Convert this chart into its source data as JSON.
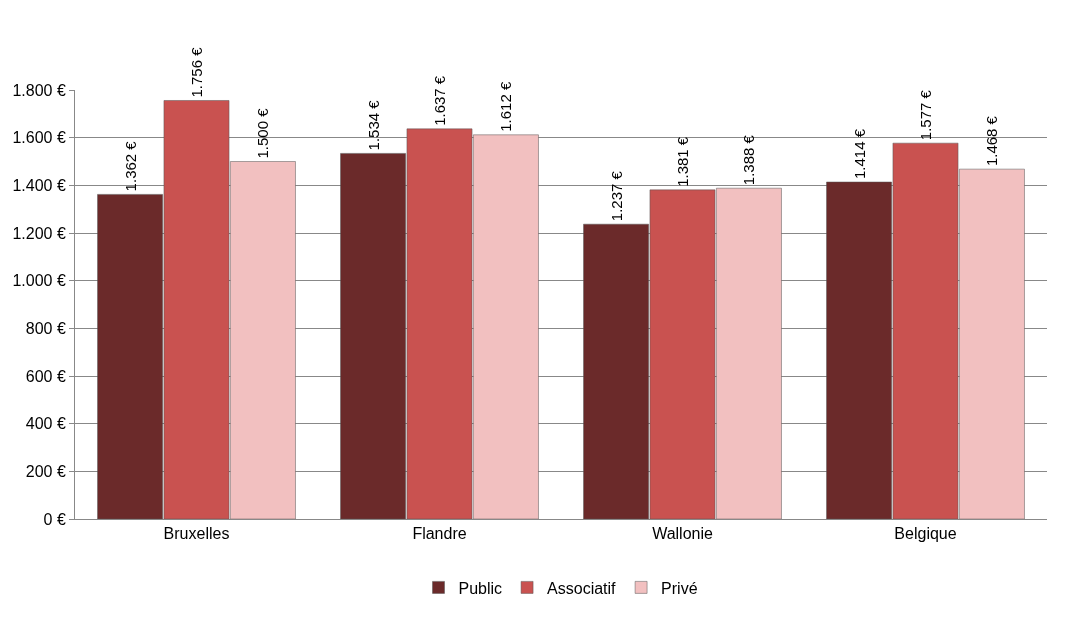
{
  "chart_data": {
    "type": "bar",
    "categories": [
      "Bruxelles",
      "Flandre",
      "Wallonie",
      "Belgique"
    ],
    "series": [
      {
        "name": "Public",
        "color": "#6b2a2a",
        "values": [
          1362,
          1534,
          1237,
          1414
        ],
        "value_labels": [
          "1.362 €",
          "1.534 €",
          "1.237 €",
          "1.414 €"
        ]
      },
      {
        "name": "Associatif",
        "color": "#c95250",
        "values": [
          1756,
          1637,
          1381,
          1577
        ],
        "value_labels": [
          "1.756 €",
          "1.637 €",
          "1.381 €",
          "1.577 €"
        ]
      },
      {
        "name": "Privé",
        "color": "#f2c0c0",
        "values": [
          1500,
          1612,
          1388,
          1468
        ],
        "value_labels": [
          "1.500 €",
          "1.612 €",
          "1.388 €",
          "1.468 €"
        ]
      }
    ],
    "ylim": [
      0,
      1800
    ],
    "yticks": [
      {
        "value": 0,
        "label": "0 €"
      },
      {
        "value": 200,
        "label": "200 €"
      },
      {
        "value": 400,
        "label": "400 €"
      },
      {
        "value": 600,
        "label": "600 €"
      },
      {
        "value": 800,
        "label": "800 €"
      },
      {
        "value": 1000,
        "label": "1.000 €"
      },
      {
        "value": 1200,
        "label": "1.200 €"
      },
      {
        "value": 1400,
        "label": "1.400 €"
      },
      {
        "value": 1600,
        "label": "1.600 €"
      },
      {
        "value": 1800,
        "label": "1.800 €"
      }
    ],
    "grid": "y",
    "legend": "bottom"
  }
}
